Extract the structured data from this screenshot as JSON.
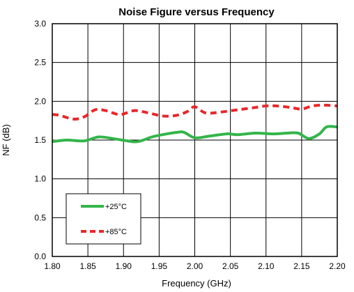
{
  "chart_data": {
    "type": "line",
    "title": "Noise Figure versus Frequency",
    "xlabel": "Frequency (GHz)",
    "ylabel": "NF (dB)",
    "xlim": [
      1.8,
      2.2
    ],
    "ylim": [
      0.0,
      3.0
    ],
    "x_ticks": [
      "1.80",
      "1.85",
      "1.90",
      "1.95",
      "2.00",
      "2.05",
      "2.10",
      "2.15",
      "2.20"
    ],
    "y_ticks": [
      "0.0",
      "0.5",
      "1.0",
      "1.5",
      "2.0",
      "2.5",
      "3.0"
    ],
    "grid": true,
    "legend_position": "bottom-left",
    "series": [
      {
        "name": "+25°C",
        "color": "#33b54a",
        "style": "solid",
        "x": [
          1.8,
          1.82,
          1.845,
          1.865,
          1.885,
          1.905,
          1.92,
          1.94,
          1.955,
          1.975,
          1.985,
          2.0,
          2.02,
          2.045,
          2.06,
          2.085,
          2.11,
          2.13,
          2.145,
          2.16,
          2.175,
          2.185,
          2.2
        ],
        "y": [
          1.48,
          1.5,
          1.49,
          1.54,
          1.52,
          1.49,
          1.48,
          1.54,
          1.57,
          1.6,
          1.6,
          1.53,
          1.55,
          1.58,
          1.57,
          1.59,
          1.58,
          1.59,
          1.59,
          1.52,
          1.58,
          1.67,
          1.67
        ]
      },
      {
        "name": "+85°C",
        "color": "#e8272b",
        "style": "dashed",
        "x": [
          1.8,
          1.81,
          1.83,
          1.845,
          1.86,
          1.875,
          1.895,
          1.915,
          1.935,
          1.955,
          1.975,
          1.99,
          2.0,
          2.015,
          2.035,
          2.06,
          2.085,
          2.1,
          2.115,
          2.135,
          2.15,
          2.165,
          2.18,
          2.2
        ],
        "y": [
          1.83,
          1.82,
          1.77,
          1.8,
          1.89,
          1.88,
          1.83,
          1.88,
          1.85,
          1.81,
          1.82,
          1.87,
          1.93,
          1.85,
          1.86,
          1.89,
          1.92,
          1.94,
          1.94,
          1.92,
          1.9,
          1.94,
          1.95,
          1.94
        ]
      }
    ]
  }
}
